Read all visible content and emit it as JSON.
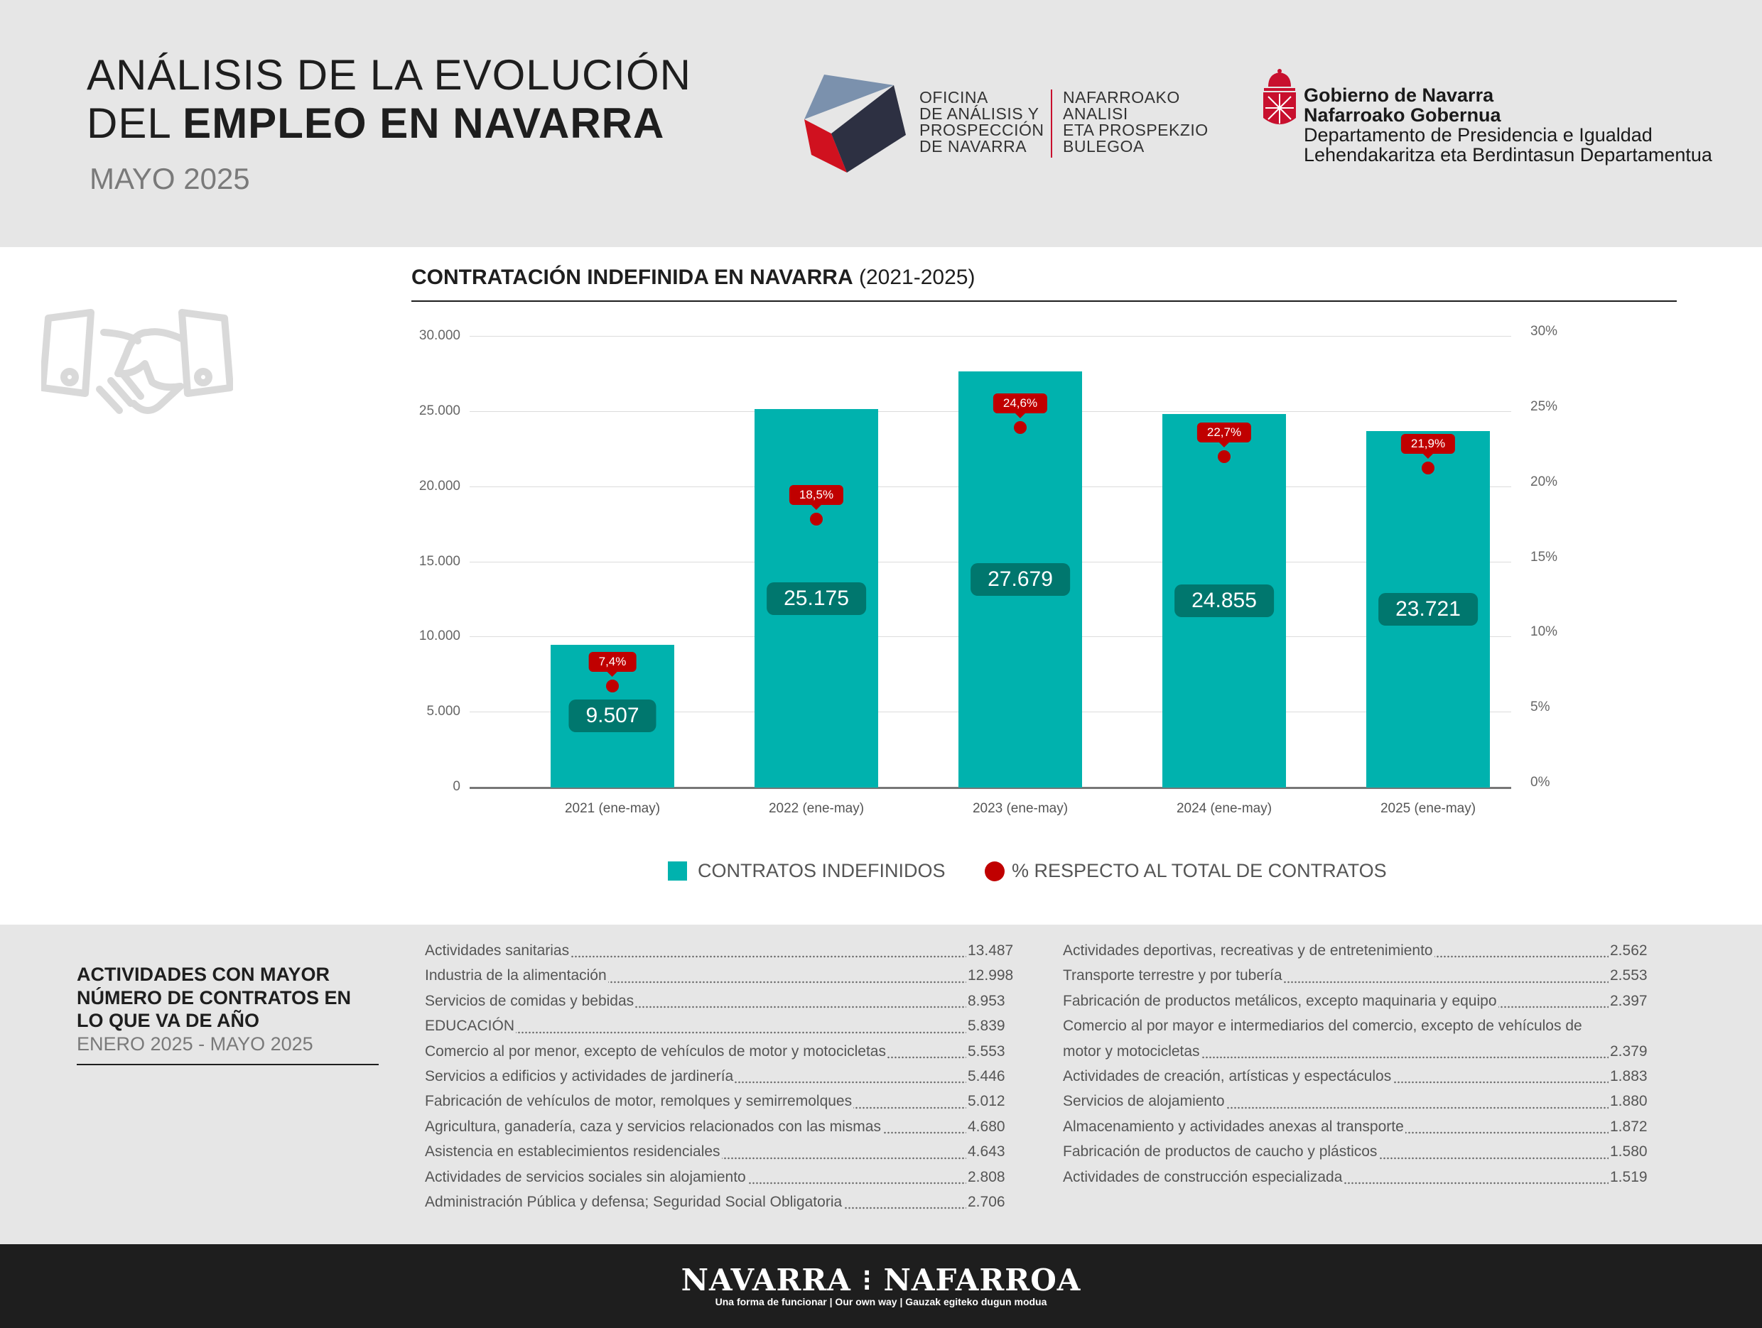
{
  "header": {
    "title_line1": "ANÁLISIS DE LA EVOLUCIÓN",
    "title_line2_prefix": "DEL ",
    "title_line2_bold": "EMPLEO EN NAVARRA",
    "subtitle": "MAYO 2025",
    "oap_es": [
      "OFICINA",
      "DE ANÁLISIS Y",
      "PROSPECCIÓN",
      "DE NAVARRA"
    ],
    "oap_eu": [
      "NAFARROAKO",
      "ANALISI",
      "ETA PROSPEKZIO",
      "BULEGOA"
    ],
    "gob": [
      "Gobierno de Navarra",
      "Nafarroako Gobernua",
      "Departamento de Presidencia e Igualdad",
      "Lehendakaritza eta Berdintasun Departamentua"
    ]
  },
  "colors": {
    "bar": "#00b2ae",
    "bar_label": "#00776e",
    "pct": "#c00000"
  },
  "chart_data": {
    "type": "bar",
    "title": "CONTRATACIÓN INDEFINIDA EN NAVARRA",
    "title_suffix": "(2021-2025)",
    "categories": [
      "2021 (ene-may)",
      "2022 (ene-may)",
      "2023 (ene-may)",
      "2024 (ene-may)",
      "2025 (ene-may)"
    ],
    "series": [
      {
        "name": "CONTRATOS INDEFINIDOS",
        "type": "bar",
        "axis": "left",
        "values": [
          9507,
          25175,
          27679,
          24855,
          23721
        ],
        "labels": [
          "9.507",
          "25.175",
          "27.679",
          "24.855",
          "23.721"
        ]
      },
      {
        "name": "% RESPECTO AL TOTAL DE CONTRATOS",
        "type": "scatter",
        "axis": "right",
        "values": [
          7.4,
          18.5,
          24.6,
          22.7,
          21.9
        ],
        "labels": [
          "7,4%",
          "18,5%",
          "24,6%",
          "22,7%",
          "21,9%"
        ]
      }
    ],
    "ylim": [
      0,
      30000
    ],
    "yticks": [
      "0",
      "5.000",
      "10.000",
      "15.000",
      "20.000",
      "25.000",
      "30.000"
    ],
    "y2lim": [
      0,
      30
    ],
    "y2ticks": [
      "0%",
      "5%",
      "10%",
      "15%",
      "20%",
      "25%",
      "30%"
    ],
    "grid": true,
    "legend": "bottom"
  },
  "activities": {
    "heading": [
      "ACTIVIDADES CON MAYOR",
      "NÚMERO DE CONTRATOS EN",
      "LO QUE VA DE AÑO"
    ],
    "period": "ENERO 2025 - MAYO 2025",
    "col1": [
      {
        "label": "Actividades sanitarias",
        "value": "13.487"
      },
      {
        "label": "Industria de la alimentación",
        "value": "12.998"
      },
      {
        "label": "Servicios de comidas y bebidas",
        "value": "8.953"
      },
      {
        "label": "EDUCACIÓN",
        "value": "5.839"
      },
      {
        "label": "Comercio al por menor, excepto de vehículos de motor y motocicletas",
        "value": "5.553"
      },
      {
        "label": "Servicios a edificios y actividades de jardinería",
        "value": "5.446"
      },
      {
        "label": "Fabricación de vehículos de motor, remolques y semirremolques",
        "value": "5.012"
      },
      {
        "label": "Agricultura, ganadería, caza y servicios relacionados con las mismas",
        "value": "4.680"
      },
      {
        "label": "Asistencia en establecimientos residenciales",
        "value": "4.643"
      },
      {
        "label": "Actividades de servicios sociales sin alojamiento",
        "value": "2.808"
      },
      {
        "label": "Administración Pública y defensa; Seguridad Social Obligatoria",
        "value": "2.706"
      }
    ],
    "col2": [
      {
        "label": "Actividades deportivas, recreativas y de entretenimiento",
        "value": "2.562"
      },
      {
        "label": "Transporte terrestre y por tubería",
        "value": "2.553"
      },
      {
        "label": "Fabricación de productos metálicos, excepto maquinaria y equipo",
        "value": "2.397"
      },
      {
        "label": "Comercio al por mayor e intermediarios del comercio, excepto de vehículos de motor y motocicletas",
        "value": "2.379"
      },
      {
        "label": "Actividades de creación, artísticas y espectáculos",
        "value": "1.883"
      },
      {
        "label": "Servicios de alojamiento",
        "value": "1.880"
      },
      {
        "label": "Almacenamiento y actividades anexas al transporte",
        "value": "1.872"
      },
      {
        "label": "Fabricación de productos de caucho y plásticos",
        "value": "1.580"
      },
      {
        "label": "Actividades de construcción especializada",
        "value": "1.519"
      }
    ]
  },
  "footer": {
    "brand_left": "NAVARRA",
    "brand_sep": "⁝",
    "brand_right": "NAFARROA",
    "tagline": "Una forma de funcionar | Our own way | Gauzak egiteko dugun modua"
  }
}
